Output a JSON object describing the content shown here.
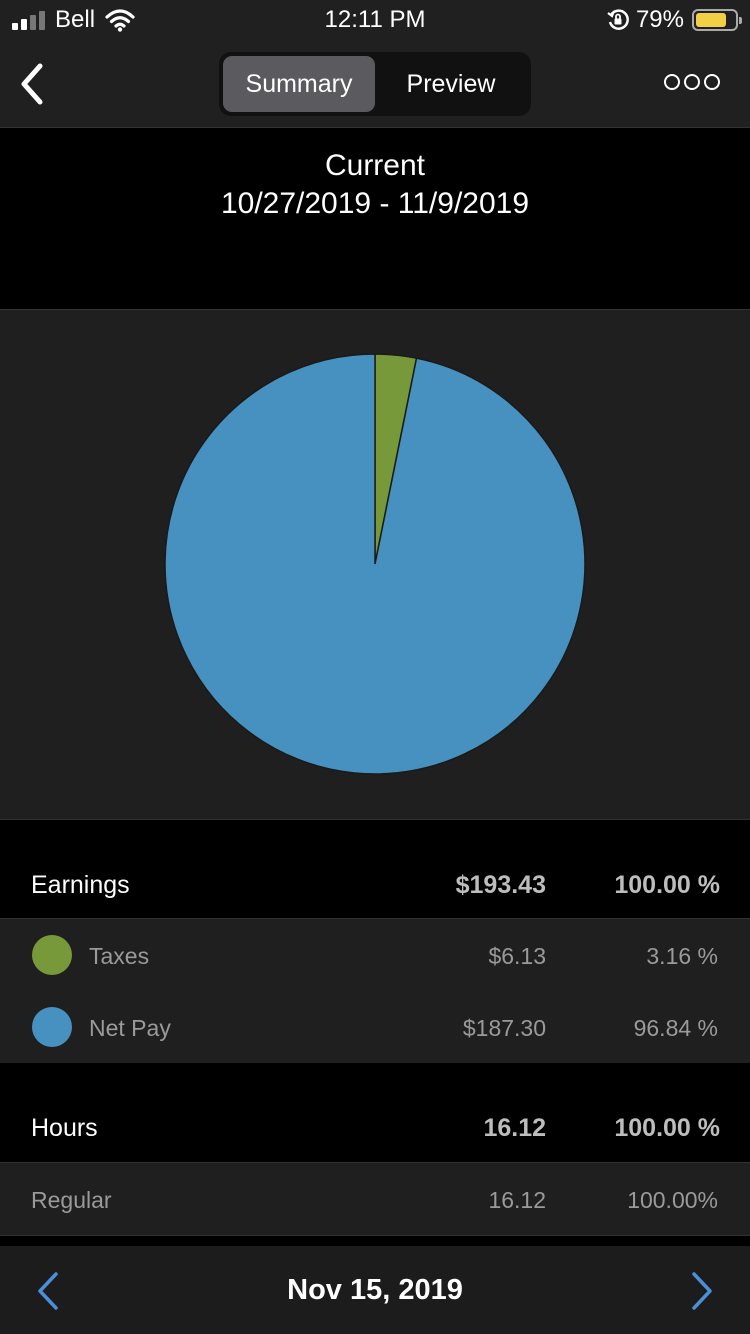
{
  "status_bar": {
    "carrier": "Bell",
    "time": "12:11 PM",
    "battery_percent": "79%",
    "battery_level": 0.79,
    "battery_color": "#f2d046",
    "icons": [
      "signal-icon",
      "wifi-icon",
      "orientation-lock-icon",
      "battery-icon"
    ]
  },
  "nav": {
    "back_icon": "chevron-left-icon",
    "tabs": [
      {
        "label": "Summary",
        "active": true
      },
      {
        "label": "Preview",
        "active": false
      }
    ],
    "more_icon": "more-icon"
  },
  "period": {
    "label": "Current",
    "range": "10/27/2019 - 11/9/2019"
  },
  "chart_data": {
    "type": "pie",
    "slices": [
      {
        "label": "Taxes",
        "value": 6.13,
        "percent": 3.16,
        "color": "#77993a"
      },
      {
        "label": "Net Pay",
        "value": 187.3,
        "percent": 96.84,
        "color": "#4691bf"
      }
    ]
  },
  "earnings": {
    "label": "Earnings",
    "total": "$193.43",
    "total_percent": "100.00 %",
    "items": [
      {
        "label": "Taxes",
        "amount": "$6.13",
        "percent": "3.16 %",
        "color": "#77993a"
      },
      {
        "label": "Net Pay",
        "amount": "$187.30",
        "percent": "96.84 %",
        "color": "#4691bf"
      }
    ]
  },
  "hours": {
    "label": "Hours",
    "total": "16.12",
    "total_percent": "100.00 %",
    "items": [
      {
        "label": "Regular",
        "amount": "16.12",
        "percent": "100.00%"
      }
    ]
  },
  "bottom_bar": {
    "date": "Nov 15, 2019",
    "prev_icon": "chevron-left-icon",
    "next_icon": "chevron-right-icon",
    "accent_color": "#4a8fd8"
  }
}
